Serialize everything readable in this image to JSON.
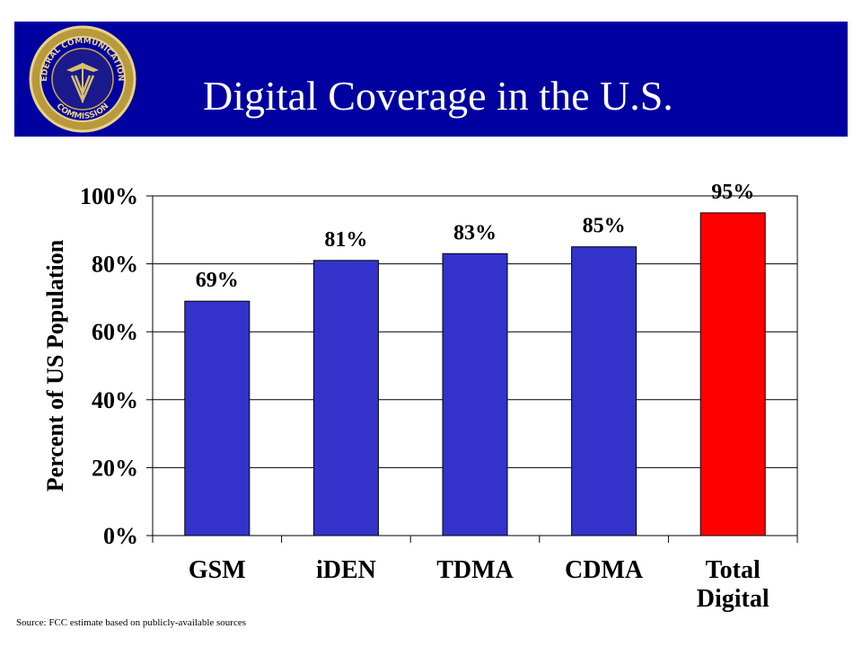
{
  "header": {
    "title": "Digital Coverage in the U.S.",
    "seal_text_top": "FEDERAL COMMUNICATIONS",
    "seal_text_bottom": "COMMISSION"
  },
  "source_note": "Source: FCC estimate based on publicly-available sources",
  "colors": {
    "header_bg": "#0000a0",
    "bar": "#3333cc",
    "highlight_bar": "#ff0000"
  },
  "chart_data": {
    "type": "bar",
    "categories": [
      "GSM",
      "iDEN",
      "TDMA",
      "CDMA",
      "Total Digital"
    ],
    "category_lines": [
      [
        "GSM"
      ],
      [
        "iDEN"
      ],
      [
        "TDMA"
      ],
      [
        "CDMA"
      ],
      [
        "Total",
        "Digital"
      ]
    ],
    "values": [
      69,
      81,
      83,
      85,
      95
    ],
    "data_labels": [
      "69%",
      "81%",
      "83%",
      "85%",
      "95%"
    ],
    "highlight_index": 4,
    "ylabel": "Percent of US Population",
    "xlabel": "",
    "ylim": [
      0,
      100
    ],
    "yticks": [
      0,
      20,
      40,
      60,
      80,
      100
    ],
    "ytick_labels": [
      "0%",
      "20%",
      "40%",
      "60%",
      "80%",
      "100%"
    ],
    "grid": true
  }
}
